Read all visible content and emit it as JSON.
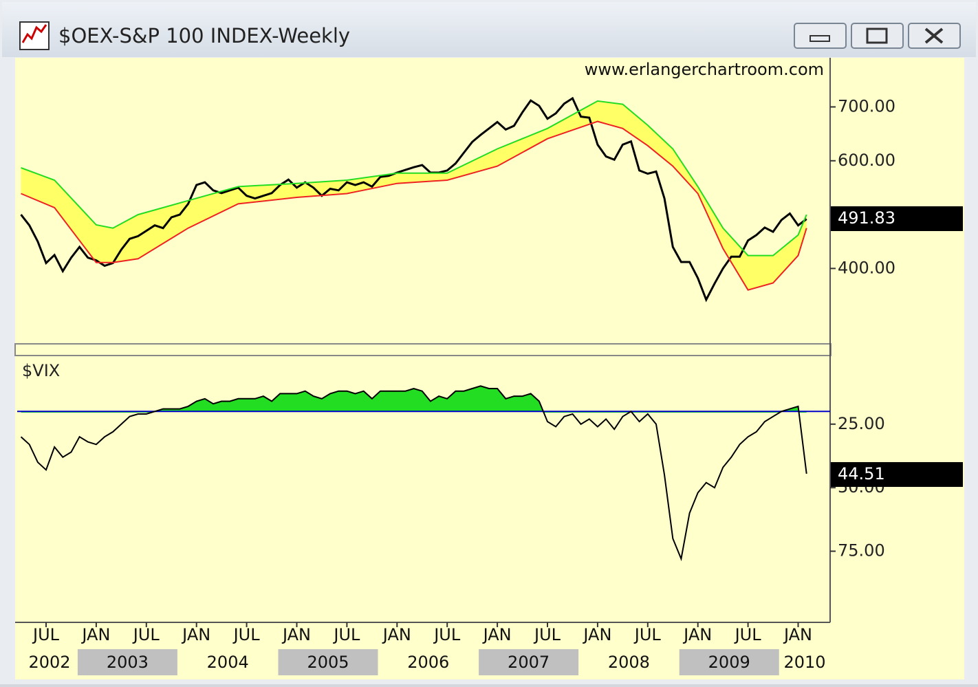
{
  "window_title": "$OEX-S&P 100 INDEX-Weekly",
  "chart_data": [
    {
      "type": "line",
      "annotation": "www.erlangerchartroom.com",
      "ylim": [
        260,
        790
      ],
      "yticks": [
        {
          "value": 400,
          "label": "400.00"
        },
        {
          "value": 600,
          "label": "600.00"
        },
        {
          "value": 700,
          "label": "700.00"
        }
      ],
      "band_fill": "#ffff66",
      "series": [
        {
          "name": "$OEX",
          "color": "#000000",
          "x": [
            "2002-04",
            "2002-05",
            "2002-06",
            "2002-07",
            "2002-08",
            "2002-09",
            "2002-10",
            "2002-11",
            "2002-12",
            "2003-01",
            "2003-02",
            "2003-03",
            "2003-04",
            "2003-05",
            "2003-06",
            "2003-07",
            "2003-08",
            "2003-09",
            "2003-10",
            "2003-11",
            "2003-12",
            "2004-01",
            "2004-02",
            "2004-03",
            "2004-04",
            "2004-05",
            "2004-06",
            "2004-07",
            "2004-08",
            "2004-09",
            "2004-10",
            "2004-11",
            "2004-12",
            "2005-01",
            "2005-02",
            "2005-03",
            "2005-04",
            "2005-05",
            "2005-06",
            "2005-07",
            "2005-08",
            "2005-09",
            "2005-10",
            "2005-11",
            "2005-12",
            "2006-01",
            "2006-02",
            "2006-03",
            "2006-04",
            "2006-05",
            "2006-06",
            "2006-07",
            "2006-08",
            "2006-09",
            "2006-10",
            "2006-11",
            "2006-12",
            "2007-01",
            "2007-02",
            "2007-03",
            "2007-04",
            "2007-05",
            "2007-06",
            "2007-07",
            "2007-08",
            "2007-09",
            "2007-10",
            "2007-11",
            "2007-12",
            "2008-01",
            "2008-02",
            "2008-03",
            "2008-04",
            "2008-05",
            "2008-06",
            "2008-07",
            "2008-08",
            "2008-09",
            "2008-10",
            "2008-11",
            "2008-12",
            "2009-01",
            "2009-02",
            "2009-03",
            "2009-04",
            "2009-05",
            "2009-06",
            "2009-07",
            "2009-08",
            "2009-09",
            "2009-10",
            "2009-11",
            "2009-12",
            "2010-01",
            "2010-02"
          ],
          "values": [
            500,
            480,
            450,
            410,
            425,
            395,
            420,
            440,
            420,
            415,
            405,
            410,
            435,
            455,
            460,
            470,
            480,
            475,
            495,
            500,
            520,
            555,
            560,
            545,
            540,
            545,
            550,
            535,
            530,
            535,
            540,
            555,
            565,
            550,
            560,
            550,
            535,
            548,
            545,
            560,
            555,
            560,
            552,
            570,
            572,
            578,
            583,
            588,
            592,
            578,
            578,
            582,
            595,
            615,
            635,
            648,
            660,
            672,
            658,
            665,
            690,
            712,
            702,
            678,
            688,
            706,
            716,
            682,
            680,
            630,
            608,
            602,
            630,
            636,
            582,
            576,
            580,
            530,
            440,
            412,
            412,
            382,
            342,
            372,
            400,
            422,
            422,
            452,
            462,
            476,
            468,
            490,
            502,
            480,
            491.83
          ]
        },
        {
          "name": "upper band",
          "color": "#22dd22",
          "x": [
            "2002-04",
            "2002-08",
            "2003-01",
            "2003-03",
            "2003-06",
            "2003-12",
            "2004-06",
            "2005-01",
            "2005-07",
            "2006-01",
            "2006-07",
            "2007-01",
            "2007-07",
            "2008-01",
            "2008-04",
            "2008-07",
            "2008-10",
            "2009-01",
            "2009-04",
            "2009-07",
            "2009-10",
            "2010-01",
            "2010-02"
          ],
          "values": [
            587,
            564,
            481,
            475,
            500,
            526,
            552,
            558,
            564,
            577,
            577,
            622,
            660,
            711,
            705,
            666,
            622,
            552,
            475,
            424,
            424,
            462,
            500
          ]
        },
        {
          "name": "lower band",
          "color": "#ee2222",
          "x": [
            "2002-04",
            "2002-08",
            "2003-01",
            "2003-03",
            "2003-06",
            "2003-12",
            "2004-06",
            "2005-01",
            "2005-07",
            "2006-01",
            "2006-07",
            "2007-01",
            "2007-07",
            "2008-01",
            "2008-04",
            "2008-07",
            "2008-10",
            "2009-01",
            "2009-04",
            "2009-07",
            "2009-10",
            "2010-01",
            "2010-02"
          ],
          "values": [
            539,
            513,
            411,
            411,
            418,
            475,
            520,
            532,
            539,
            558,
            564,
            590,
            641,
            673,
            660,
            628,
            590,
            539,
            437,
            360,
            373,
            424,
            475
          ]
        }
      ]
    },
    {
      "type": "line",
      "title": "$VIX",
      "ylim": [
        -2,
        103
      ],
      "y_inverted": true,
      "yticks": [
        {
          "value": 25,
          "label": "25.00"
        },
        {
          "value": 50,
          "label": "50.00"
        },
        {
          "value": 75,
          "label": "75.00"
        }
      ],
      "threshold": 20,
      "threshold_color": "#0000cc",
      "fill_color": "#22dd22",
      "series": [
        {
          "name": "$VIX",
          "color": "#000000",
          "x": [
            "2002-04",
            "2002-05",
            "2002-06",
            "2002-07",
            "2002-08",
            "2002-09",
            "2002-10",
            "2002-11",
            "2002-12",
            "2003-01",
            "2003-02",
            "2003-03",
            "2003-04",
            "2003-05",
            "2003-06",
            "2003-07",
            "2003-08",
            "2003-09",
            "2003-10",
            "2003-11",
            "2003-12",
            "2004-01",
            "2004-02",
            "2004-03",
            "2004-04",
            "2004-05",
            "2004-06",
            "2004-07",
            "2004-08",
            "2004-09",
            "2004-10",
            "2004-11",
            "2004-12",
            "2005-01",
            "2005-02",
            "2005-03",
            "2005-04",
            "2005-05",
            "2005-06",
            "2005-07",
            "2005-08",
            "2005-09",
            "2005-10",
            "2005-11",
            "2005-12",
            "2006-01",
            "2006-02",
            "2006-03",
            "2006-04",
            "2006-05",
            "2006-06",
            "2006-07",
            "2006-08",
            "2006-09",
            "2006-10",
            "2006-11",
            "2006-12",
            "2007-01",
            "2007-02",
            "2007-03",
            "2007-04",
            "2007-05",
            "2007-06",
            "2007-07",
            "2007-08",
            "2007-09",
            "2007-10",
            "2007-11",
            "2007-12",
            "2008-01",
            "2008-02",
            "2008-03",
            "2008-04",
            "2008-05",
            "2008-06",
            "2008-07",
            "2008-08",
            "2008-09",
            "2008-10",
            "2008-11",
            "2008-12",
            "2009-01",
            "2009-02",
            "2009-03",
            "2009-04",
            "2009-05",
            "2009-06",
            "2009-07",
            "2009-08",
            "2009-09",
            "2009-10",
            "2009-11",
            "2009-12",
            "2010-01",
            "2010-02"
          ],
          "values": [
            30,
            33,
            40,
            43,
            34,
            38,
            36,
            30,
            32,
            33,
            30,
            28,
            25,
            22,
            21,
            21,
            20,
            19,
            19,
            19,
            18,
            16,
            15,
            17,
            16,
            16,
            15,
            15,
            15,
            14,
            16,
            13,
            13,
            13,
            12,
            14,
            15,
            13,
            12,
            12,
            13,
            12,
            15,
            12,
            12,
            12,
            12,
            11,
            12,
            16,
            14,
            15,
            12,
            12,
            11,
            10,
            11,
            11,
            15,
            14,
            14,
            13,
            16,
            24,
            26,
            22,
            21,
            25,
            23,
            26,
            23,
            27,
            22,
            20,
            24,
            21,
            25,
            45,
            70,
            78,
            60,
            52,
            48,
            50,
            42,
            38,
            33,
            30,
            28,
            24,
            22,
            20,
            19,
            18,
            44.51
          ]
        }
      ]
    }
  ],
  "xticks": [
    {
      "value": "2002-07",
      "label": "JUL"
    },
    {
      "value": "2003-01",
      "label": "JAN"
    },
    {
      "value": "2003-07",
      "label": "JUL"
    },
    {
      "value": "2004-01",
      "label": "JAN"
    },
    {
      "value": "2004-07",
      "label": "JUL"
    },
    {
      "value": "2005-01",
      "label": "JAN"
    },
    {
      "value": "2005-07",
      "label": "JUL"
    },
    {
      "value": "2006-01",
      "label": "JAN"
    },
    {
      "value": "2006-07",
      "label": "JUL"
    },
    {
      "value": "2007-01",
      "label": "JAN"
    },
    {
      "value": "2007-07",
      "label": "JUL"
    },
    {
      "value": "2008-01",
      "label": "JAN"
    },
    {
      "value": "2008-07",
      "label": "JUL"
    },
    {
      "value": "2009-01",
      "label": "JAN"
    },
    {
      "value": "2009-07",
      "label": "JUL"
    },
    {
      "value": "2010-01",
      "label": "JAN"
    }
  ],
  "years": [
    "2002",
    "2003",
    "2004",
    "2005",
    "2006",
    "2007",
    "2008",
    "2009",
    "2010"
  ]
}
